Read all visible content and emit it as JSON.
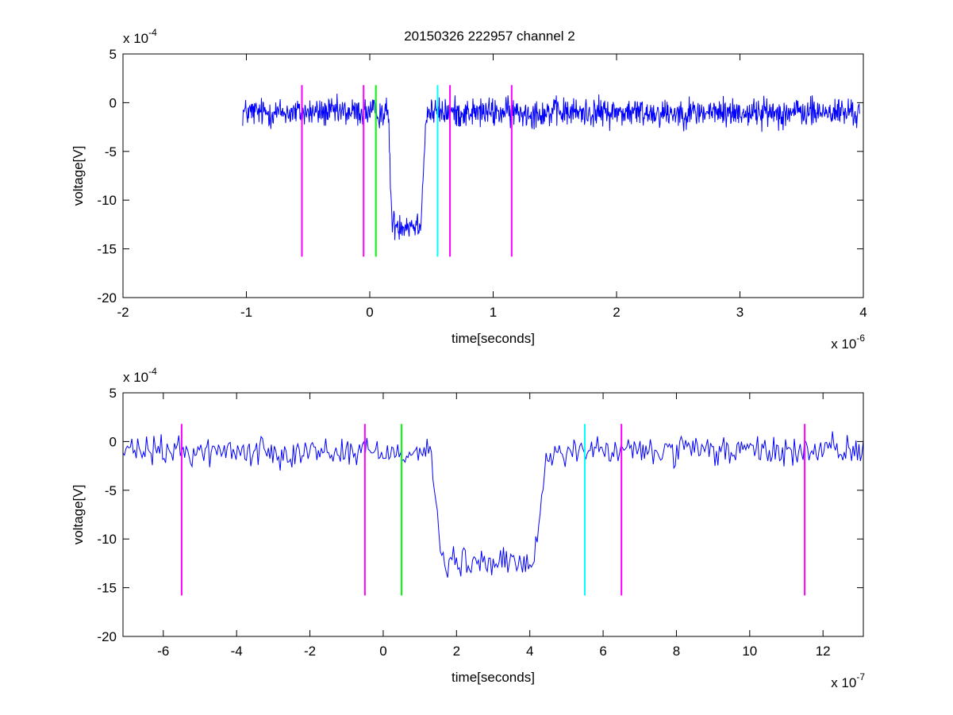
{
  "figure": {
    "title": "20150326 222957 channel 2"
  },
  "colors": {
    "trace": "#0000ff",
    "marker_magenta": "#ff00ff",
    "marker_green": "#00ff00",
    "marker_cyan": "#00ffff"
  },
  "chart_data": [
    {
      "type": "line",
      "title": "20150326 222957 channel 2",
      "xlabel": "time[seconds]",
      "ylabel": "voltage[V]",
      "x_unit_scale": 1e-06,
      "y_unit_scale": 0.0001,
      "x_exponent_label": {
        "base": "x 10",
        "exp": "-6"
      },
      "y_exponent_label": {
        "base": "x 10",
        "exp": "-4"
      },
      "xlim": [
        -2,
        4
      ],
      "ylim": [
        -20,
        5
      ],
      "x_ticks": [
        -2,
        -1,
        0,
        1,
        2,
        3,
        4
      ],
      "y_ticks": [
        5,
        0,
        -5,
        -10,
        -15,
        -20
      ],
      "x_tick_labels": [
        "-2",
        "-1",
        "0",
        "1",
        "2",
        "3",
        "4"
      ],
      "y_tick_labels": [
        "5",
        "0",
        "-5",
        "-10",
        "-15",
        "-20"
      ],
      "grid": false,
      "trace": {
        "color": "#0000ff",
        "x_start": -1.03,
        "x_end": 3.97,
        "samples": 1250,
        "baseline": -1.0,
        "noise_amplitude": 1.3,
        "dip": {
          "fall_start": 0.15,
          "fall_end": 0.18,
          "rise_start": 0.41,
          "rise_end": 0.46,
          "level": -12.5
        }
      },
      "markers": [
        {
          "x": -0.55,
          "y_top": 1.8,
          "y_bottom": -15.8,
          "color": "#ff00ff"
        },
        {
          "x": -0.05,
          "y_top": 1.8,
          "y_bottom": -15.8,
          "color": "#ff00ff"
        },
        {
          "x": 0.05,
          "y_top": 1.8,
          "y_bottom": -15.8,
          "color": "#00ff00"
        },
        {
          "x": 0.55,
          "y_top": 1.8,
          "y_bottom": -15.8,
          "color": "#00ffff"
        },
        {
          "x": 0.65,
          "y_top": 1.8,
          "y_bottom": -15.8,
          "color": "#ff00ff"
        },
        {
          "x": 1.15,
          "y_top": 1.8,
          "y_bottom": -15.8,
          "color": "#ff00ff"
        }
      ]
    },
    {
      "type": "line",
      "title": "",
      "xlabel": "time[seconds]",
      "ylabel": "voltage[V]",
      "x_unit_scale": 1e-07,
      "y_unit_scale": 0.0001,
      "x_exponent_label": {
        "base": "x 10",
        "exp": "-7"
      },
      "y_exponent_label": {
        "base": "x 10",
        "exp": "-4"
      },
      "xlim": [
        -7.1,
        13.1
      ],
      "ylim": [
        -20,
        5
      ],
      "x_ticks": [
        -6,
        -4,
        -2,
        0,
        2,
        4,
        6,
        8,
        10,
        12
      ],
      "y_ticks": [
        5,
        0,
        -5,
        -10,
        -15,
        -20
      ],
      "x_tick_labels": [
        "-6",
        "-4",
        "-2",
        "0",
        "2",
        "4",
        "6",
        "8",
        "10",
        "12"
      ],
      "y_tick_labels": [
        "5",
        "0",
        "-5",
        "-10",
        "-15",
        "-20"
      ],
      "grid": false,
      "trace": {
        "color": "#0000ff",
        "x_start": -7.1,
        "x_end": 13.1,
        "samples": 505,
        "baseline": -1.0,
        "noise_amplitude": 1.3,
        "dip": {
          "fall_start": 1.3,
          "fall_end": 1.6,
          "rise_start": 4.1,
          "rise_end": 4.5,
          "level": -12.5
        }
      },
      "markers": [
        {
          "x": -5.5,
          "y_top": 1.8,
          "y_bottom": -15.8,
          "color": "#ff00ff"
        },
        {
          "x": -0.5,
          "y_top": 1.8,
          "y_bottom": -15.8,
          "color": "#ff00ff"
        },
        {
          "x": 0.5,
          "y_top": 1.8,
          "y_bottom": -15.8,
          "color": "#00ff00"
        },
        {
          "x": 5.5,
          "y_top": 1.8,
          "y_bottom": -15.8,
          "color": "#00ffff"
        },
        {
          "x": 6.5,
          "y_top": 1.8,
          "y_bottom": -15.8,
          "color": "#ff00ff"
        },
        {
          "x": 11.5,
          "y_top": 1.8,
          "y_bottom": -15.8,
          "color": "#ff00ff"
        }
      ]
    }
  ]
}
